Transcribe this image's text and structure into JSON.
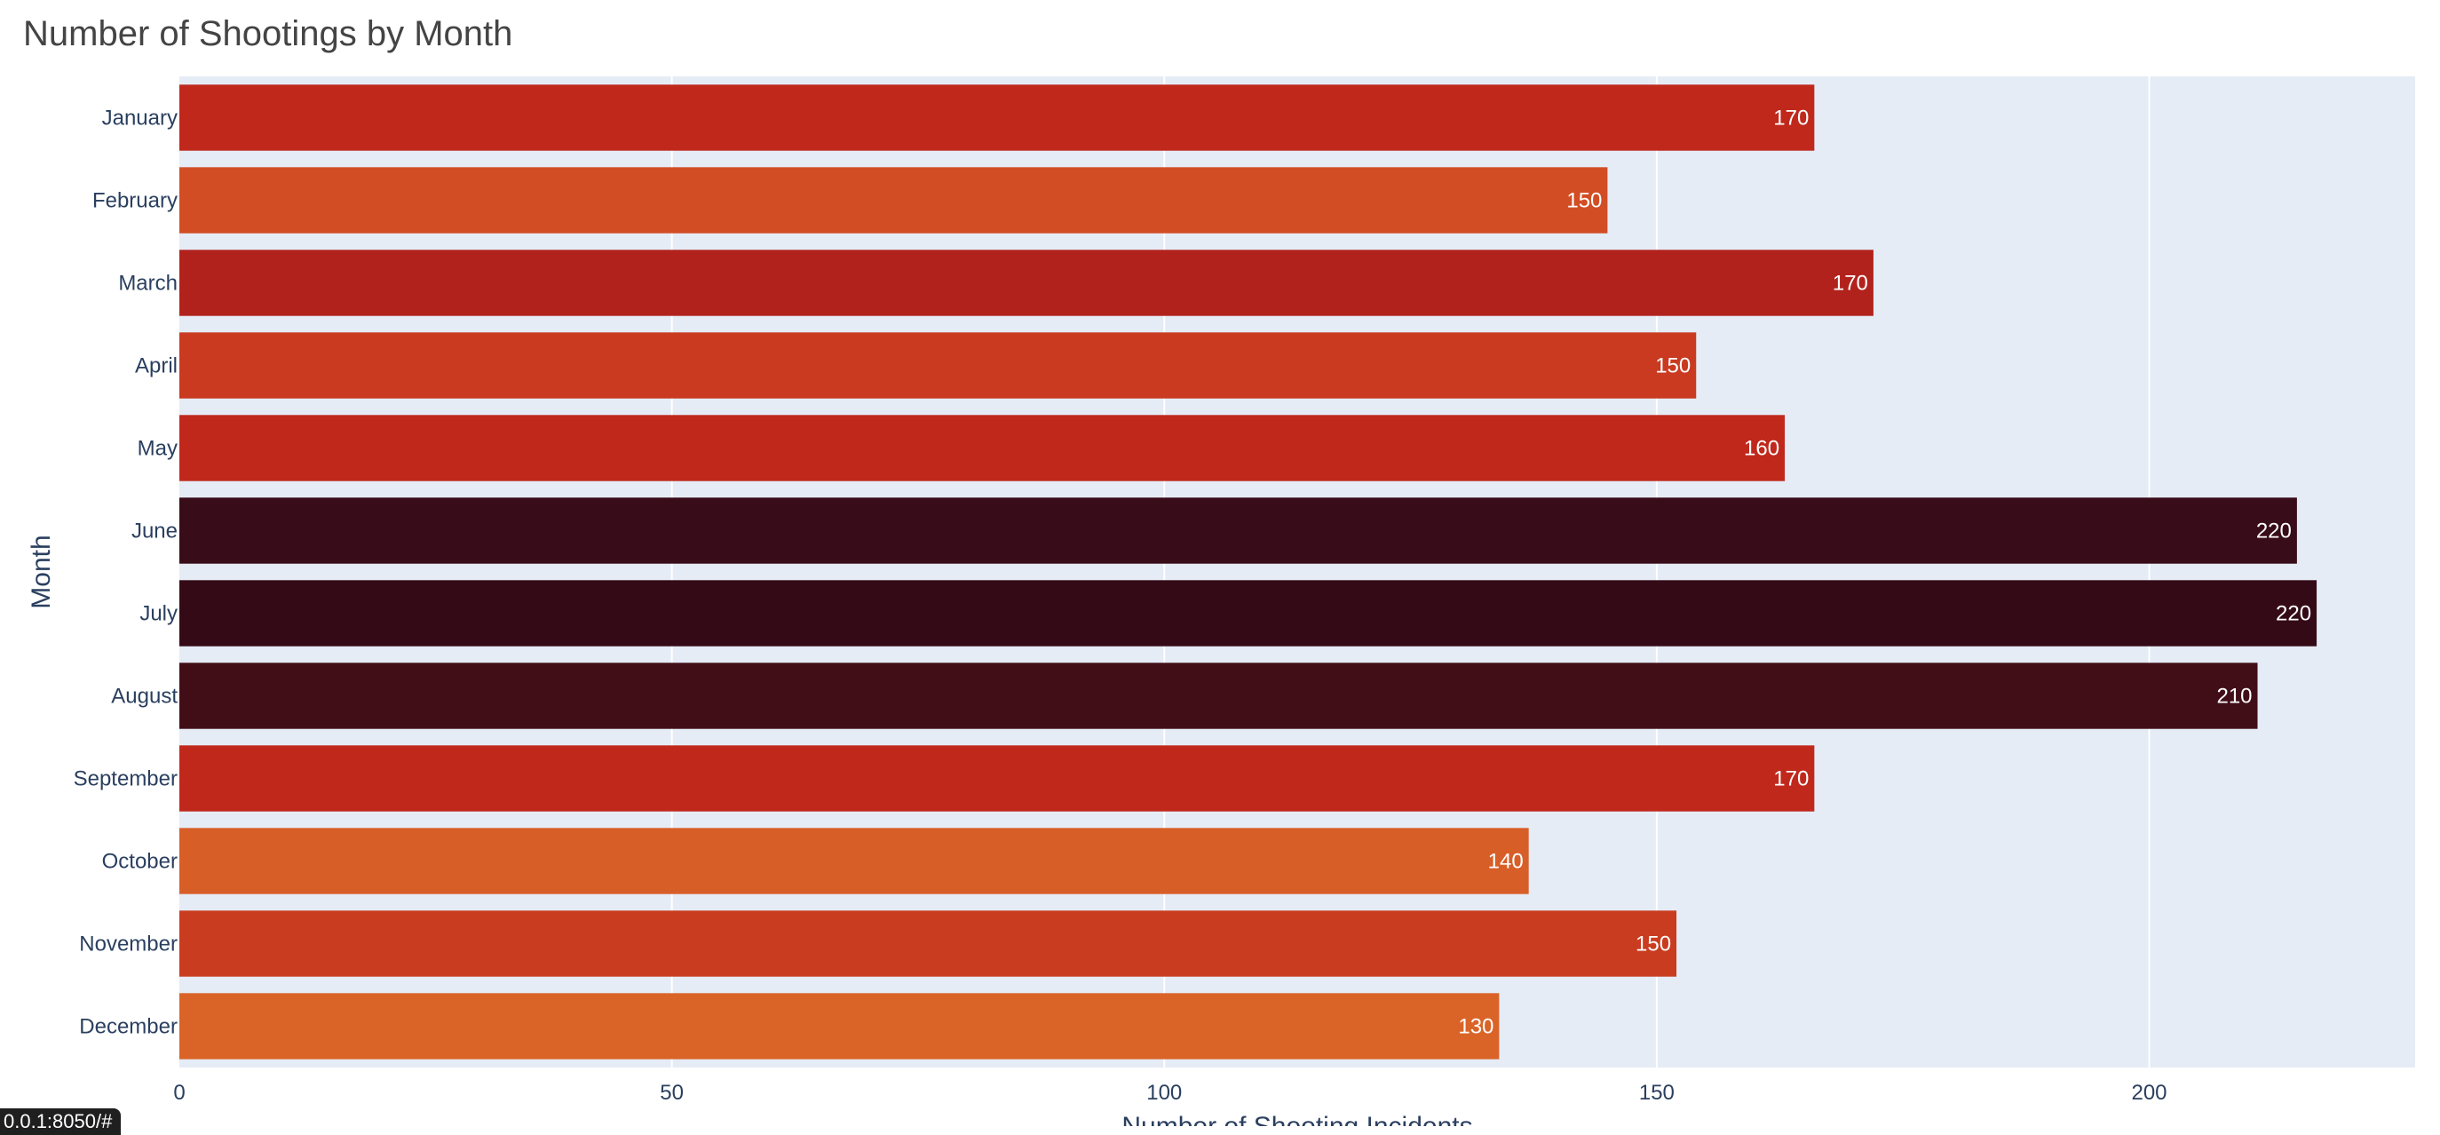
{
  "page": {
    "url_badge": "0.0.1:8050/#"
  },
  "chart_data": {
    "type": "bar",
    "orientation": "horizontal",
    "title": "Number of Shootings by Month",
    "xlabel": "Number of Shooting Incidents",
    "ylabel": "Month",
    "categories": [
      "January",
      "February",
      "March",
      "April",
      "May",
      "June",
      "July",
      "August",
      "September",
      "October",
      "November",
      "December"
    ],
    "values": [
      166,
      145,
      172,
      154,
      163,
      215,
      217,
      211,
      166,
      137,
      152,
      134
    ],
    "data_labels": [
      "170",
      "150",
      "170",
      "150",
      "160",
      "220",
      "220",
      "210",
      "170",
      "140",
      "150",
      "130"
    ],
    "bar_colors": [
      "#c0281c",
      "#d24d24",
      "#b2221c",
      "#c93a20",
      "#c0281c",
      "#380c18",
      "#340a16",
      "#410e18",
      "#c0281c",
      "#d85e28",
      "#ca3c20",
      "#da6428"
    ],
    "xlim": [
      0,
      227
    ],
    "xticks": [
      0,
      50,
      100,
      150,
      200
    ],
    "grid": true,
    "plot_background": "#e5ecf6",
    "legend": "none"
  }
}
